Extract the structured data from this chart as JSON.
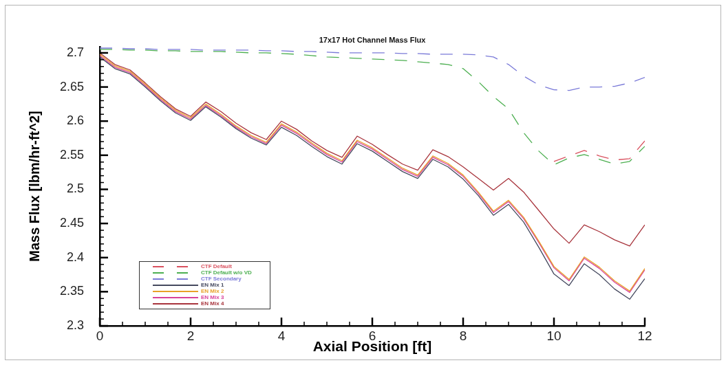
{
  "chart_data": {
    "type": "line",
    "title": "17x17 Hot Channel Mass Flux",
    "xlabel": "Axial Position [ft]",
    "ylabel": "Mass Flux [lbm/hr-ft^2]",
    "x": [
      0,
      0.333,
      0.667,
      1,
      1.333,
      1.667,
      2,
      2.333,
      2.667,
      3,
      3.333,
      3.667,
      4,
      4.333,
      4.667,
      5,
      5.333,
      5.667,
      6,
      6.333,
      6.667,
      7,
      7.333,
      7.667,
      8,
      8.333,
      8.667,
      9,
      9.333,
      9.667,
      10,
      10.333,
      10.667,
      11,
      11.333,
      11.667,
      12
    ],
    "series": [
      {
        "name": "CTF Default",
        "color": "#d9505e",
        "line_style": "dashed",
        "values": [
          null,
          null,
          null,
          null,
          null,
          null,
          null,
          null,
          null,
          null,
          null,
          null,
          null,
          null,
          null,
          null,
          null,
          null,
          null,
          null,
          null,
          null,
          null,
          null,
          null,
          null,
          null,
          null,
          null,
          null,
          2.541,
          2.549,
          2.557,
          2.549,
          2.543,
          2.545,
          2.571
        ]
      },
      {
        "name": "CTF Default w/o VD",
        "color": "#4caf50",
        "line_style": "dashed",
        "values": [
          2.705,
          2.705,
          2.704,
          2.704,
          2.703,
          2.703,
          2.702,
          2.702,
          2.702,
          2.701,
          2.7,
          2.7,
          2.699,
          2.698,
          2.696,
          2.694,
          2.693,
          2.692,
          2.691,
          2.69,
          2.689,
          2.687,
          2.685,
          2.683,
          2.677,
          2.658,
          2.636,
          2.618,
          2.583,
          2.556,
          2.536,
          2.546,
          2.551,
          2.544,
          2.537,
          2.541,
          2.563
        ]
      },
      {
        "name": "CTF Secondary",
        "color": "#7a7ad8",
        "line_style": "dashed",
        "values": [
          2.707,
          2.707,
          2.706,
          2.706,
          2.705,
          2.705,
          2.705,
          2.704,
          2.704,
          2.704,
          2.704,
          2.703,
          2.703,
          2.702,
          2.702,
          2.701,
          2.7,
          2.7,
          2.7,
          2.7,
          2.699,
          2.699,
          2.698,
          2.698,
          2.698,
          2.697,
          2.694,
          2.683,
          2.666,
          2.653,
          2.646,
          2.645,
          2.65,
          2.65,
          2.651,
          2.656,
          2.664
        ]
      },
      {
        "name": "EN Mix 1",
        "color": "#44485e",
        "line_style": "solid",
        "values": [
          2.694,
          2.677,
          2.669,
          2.65,
          2.63,
          2.612,
          2.601,
          2.621,
          2.606,
          2.589,
          2.575,
          2.565,
          2.591,
          2.579,
          2.563,
          2.548,
          2.537,
          2.567,
          2.556,
          2.541,
          2.526,
          2.516,
          2.544,
          2.533,
          2.515,
          2.491,
          2.462,
          2.478,
          2.452,
          2.415,
          2.376,
          2.359,
          2.391,
          2.375,
          2.354,
          2.339,
          2.369
        ]
      },
      {
        "name": "EN Mix 2",
        "color": "#e8a028",
        "line_style": "solid",
        "values": [
          2.698,
          2.681,
          2.673,
          2.654,
          2.634,
          2.616,
          2.605,
          2.625,
          2.61,
          2.593,
          2.579,
          2.569,
          2.596,
          2.584,
          2.568,
          2.553,
          2.542,
          2.572,
          2.561,
          2.546,
          2.531,
          2.521,
          2.549,
          2.538,
          2.521,
          2.496,
          2.468,
          2.484,
          2.459,
          2.424,
          2.387,
          2.368,
          2.401,
          2.386,
          2.366,
          2.351,
          2.384
        ]
      },
      {
        "name": "EN Mix 3",
        "color": "#d8409a",
        "line_style": "solid",
        "values": [
          2.696,
          2.679,
          2.671,
          2.652,
          2.632,
          2.614,
          2.603,
          2.623,
          2.608,
          2.591,
          2.577,
          2.567,
          2.594,
          2.582,
          2.566,
          2.551,
          2.54,
          2.57,
          2.559,
          2.544,
          2.529,
          2.519,
          2.547,
          2.536,
          2.519,
          2.494,
          2.466,
          2.482,
          2.457,
          2.422,
          2.385,
          2.366,
          2.399,
          2.384,
          2.364,
          2.349,
          2.382
        ]
      },
      {
        "name": "EN Mix 4",
        "color": "#a8343c",
        "line_style": "solid",
        "values": [
          2.7,
          2.683,
          2.675,
          2.656,
          2.636,
          2.618,
          2.607,
          2.628,
          2.614,
          2.597,
          2.583,
          2.573,
          2.6,
          2.588,
          2.571,
          2.557,
          2.547,
          2.578,
          2.566,
          2.551,
          2.537,
          2.528,
          2.558,
          2.548,
          2.533,
          2.516,
          2.499,
          2.516,
          2.496,
          2.469,
          2.442,
          2.421,
          2.448,
          2.438,
          2.426,
          2.417,
          2.448
        ]
      }
    ],
    "xlim": [
      0,
      12
    ],
    "xticks": [
      0,
      {
        "value": 0.5,
        "label": null
      },
      {
        "value": 1,
        "label": null
      },
      {
        "value": 1.5,
        "label": null
      },
      2,
      {
        "value": 2.5,
        "label": null
      },
      {
        "value": 3,
        "label": null
      },
      {
        "value": 3.5,
        "label": null
      },
      4,
      {
        "value": 4.5,
        "label": null
      },
      {
        "value": 5,
        "label": null
      },
      {
        "value": 5.5,
        "label": null
      },
      6,
      {
        "value": 6.5,
        "label": null
      },
      {
        "value": 7,
        "label": null
      },
      {
        "value": 7.5,
        "label": null
      },
      8,
      {
        "value": 8.5,
        "label": null
      },
      {
        "value": 9,
        "label": null
      },
      {
        "value": 9.5,
        "label": null
      },
      10,
      {
        "value": 10.5,
        "label": null
      },
      {
        "value": 11,
        "label": null
      },
      {
        "value": 11.5,
        "label": null
      },
      12
    ],
    "ylim": [
      2.3,
      2.709
    ],
    "yticks": [
      2.3,
      {
        "value": 2.31,
        "label": null
      },
      {
        "value": 2.32,
        "label": null
      },
      {
        "value": 2.33,
        "label": null
      },
      {
        "value": 2.34,
        "label": null
      },
      2.35,
      {
        "value": 2.36,
        "label": null
      },
      {
        "value": 2.37,
        "label": null
      },
      {
        "value": 2.38,
        "label": null
      },
      {
        "value": 2.39,
        "label": null
      },
      2.4,
      {
        "value": 2.41,
        "label": null
      },
      {
        "value": 2.42,
        "label": null
      },
      {
        "value": 2.43,
        "label": null
      },
      {
        "value": 2.44,
        "label": null
      },
      2.45,
      {
        "value": 2.46,
        "label": null
      },
      {
        "value": 2.47,
        "label": null
      },
      {
        "value": 2.48,
        "label": null
      },
      {
        "value": 2.49,
        "label": null
      },
      2.5,
      {
        "value": 2.51,
        "label": null
      },
      {
        "value": 2.52,
        "label": null
      },
      {
        "value": 2.53,
        "label": null
      },
      {
        "value": 2.54,
        "label": null
      },
      2.55,
      {
        "value": 2.56,
        "label": null
      },
      {
        "value": 2.57,
        "label": null
      },
      {
        "value": 2.58,
        "label": null
      },
      {
        "value": 2.59,
        "label": null
      },
      2.6,
      {
        "value": 2.61,
        "label": null
      },
      {
        "value": 2.62,
        "label": null
      },
      {
        "value": 2.63,
        "label": null
      },
      {
        "value": 2.64,
        "label": null
      },
      2.65,
      {
        "value": 2.66,
        "label": null
      },
      {
        "value": 2.67,
        "label": null
      },
      {
        "value": 2.68,
        "label": null
      },
      {
        "value": 2.69,
        "label": null
      },
      2.7
    ],
    "legend": "bottom left"
  }
}
